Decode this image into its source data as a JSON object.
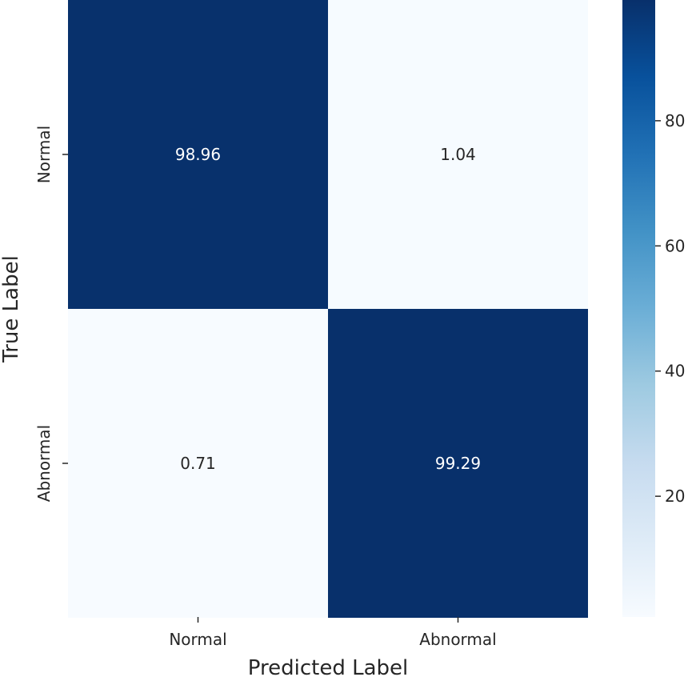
{
  "chart_data": {
    "type": "heatmap",
    "title": "",
    "xlabel": "Predicted Label",
    "ylabel": "True Label",
    "x_categories": [
      "Normal",
      "Abnormal"
    ],
    "y_categories": [
      "Normal",
      "Abnormal"
    ],
    "values": [
      [
        98.96,
        1.04
      ],
      [
        0.71,
        99.29
      ]
    ],
    "cell_labels": [
      [
        "98.96",
        "1.04"
      ],
      [
        "0.71",
        "99.29"
      ]
    ],
    "colormap": "Blues",
    "colorbar": {
      "range": [
        0.71,
        99.29
      ],
      "ticks": [
        20,
        40,
        60,
        80
      ],
      "tick_labels": [
        "20",
        "40",
        "60",
        "80"
      ]
    },
    "colors": {
      "low": "#f7fbff",
      "high": "#08306b",
      "light_text": "#ffffff",
      "dark_text": "#262626"
    }
  }
}
